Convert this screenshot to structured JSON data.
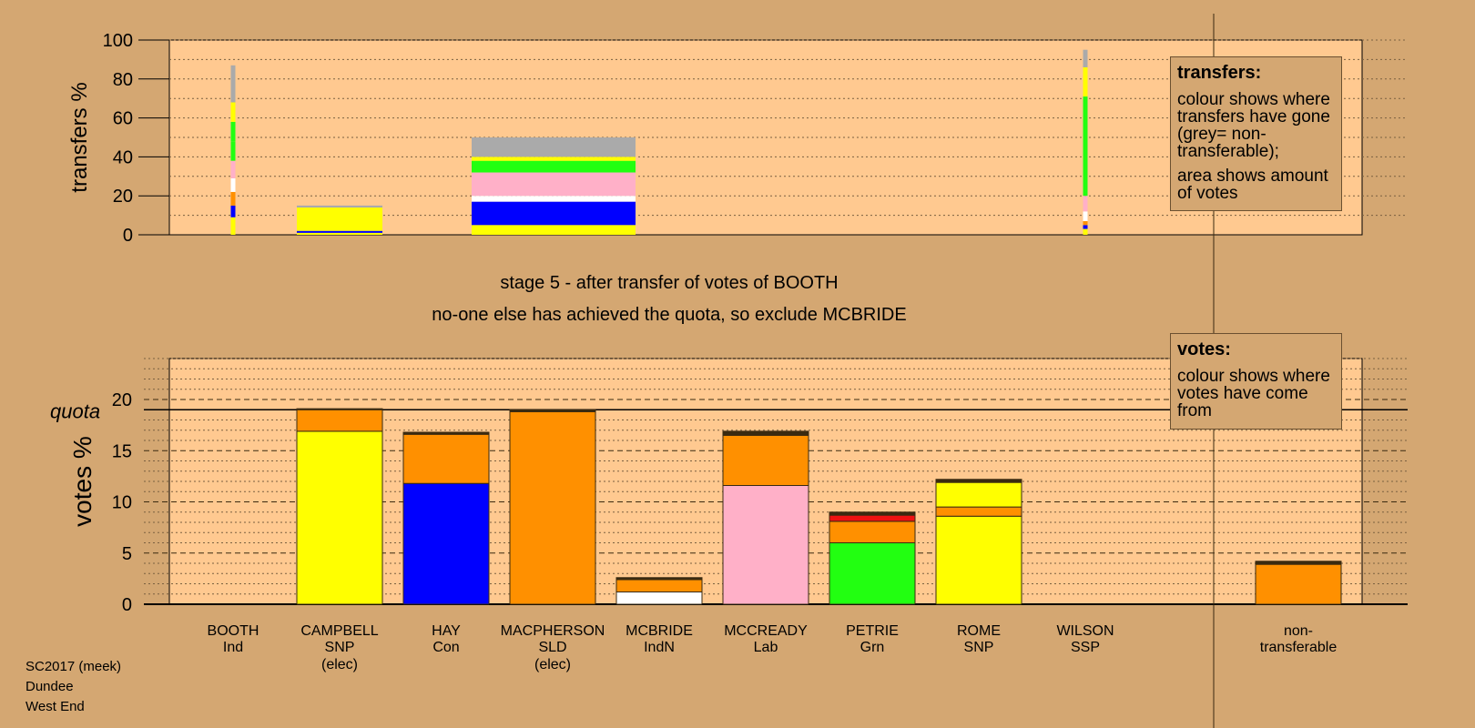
{
  "stage": {
    "title": "stage 5 - after transfer of votes of BOOTH",
    "subtitle": "no-one else has achieved the quota, so exclude MCBRIDE"
  },
  "legends": {
    "transfers_title": "transfers:",
    "transfers_p1": "colour shows where transfers have gone (grey= non-transferable);",
    "transfers_p2": "area shows amount of votes",
    "votes_title": "votes:",
    "votes_p1": "colour shows where votes have come from"
  },
  "footer": {
    "line1": "SC2017 (meek)",
    "line2": "Dundee",
    "line3": "West End"
  },
  "colors": {
    "background": "#d4a772",
    "plot_area": "#ffc990",
    "Ind": "#ffffff",
    "SNP": "#ffff00",
    "Con": "#0000ff",
    "SLD": "#ff9000",
    "IndN": "#ffffff",
    "Lab": "#ffb0c8",
    "Grn": "#22ff11",
    "SSP": "#ee1111",
    "nontransferable": "#aaaaaa"
  },
  "chart_data": [
    {
      "type": "bar",
      "stacked": true,
      "ylabel": "transfers %",
      "ylim": [
        0,
        100
      ],
      "yticks": [
        0,
        20,
        40,
        60,
        80,
        100
      ],
      "categories": [
        "BOOTH",
        "CAMPBELL",
        "HAY",
        "MACPHERSON",
        "MCBRIDE",
        "MCCREADY",
        "PETRIE",
        "ROME",
        "WILSON"
      ],
      "note": "bar width shows amount of votes",
      "bars": [
        {
          "candidate": "BOOTH",
          "width_votes_percent": 0.0,
          "segments": [
            {
              "to": "SNP",
              "value": 9
            },
            {
              "to": "Con",
              "value": 6
            },
            {
              "to": "SLD",
              "value": 7
            },
            {
              "to": "IndN",
              "value": 7
            },
            {
              "to": "Lab",
              "value": 9
            },
            {
              "to": "Grn",
              "value": 10
            },
            {
              "to": "Grn",
              "value": 10
            },
            {
              "to": "SNP",
              "value": 10
            },
            {
              "to": "non-transferable",
              "value": 19
            }
          ]
        },
        {
          "candidate": "CAMPBELL",
          "width_votes_percent": 2.0,
          "segments": [
            {
              "to": "SNP",
              "value": 1
            },
            {
              "to": "Con",
              "value": 1
            },
            {
              "to": "SNP",
              "value": 12
            },
            {
              "to": "non-transferable",
              "value": 1
            }
          ]
        },
        {
          "candidate": "MACPHERSON",
          "width_votes_percent": 3.8,
          "segments": [
            {
              "to": "SNP",
              "value": 5
            },
            {
              "to": "Con",
              "value": 12
            },
            {
              "to": "IndN",
              "value": 3
            },
            {
              "to": "Lab",
              "value": 12
            },
            {
              "to": "Grn",
              "value": 6
            },
            {
              "to": "SNP",
              "value": 2
            },
            {
              "to": "non-transferable",
              "value": 10
            }
          ]
        },
        {
          "candidate": "WILSON",
          "width_votes_percent": 0.0,
          "segments": [
            {
              "to": "SNP",
              "value": 3
            },
            {
              "to": "Con",
              "value": 2
            },
            {
              "to": "SLD",
              "value": 2
            },
            {
              "to": "IndN",
              "value": 5
            },
            {
              "to": "Lab",
              "value": 8
            },
            {
              "to": "Grn",
              "value": 51
            },
            {
              "to": "SNP",
              "value": 15
            },
            {
              "to": "non-transferable",
              "value": 9
            }
          ]
        }
      ]
    },
    {
      "type": "bar",
      "stacked": true,
      "ylabel": "votes %",
      "ylim": [
        0,
        24
      ],
      "yticks": [
        0,
        5,
        10,
        15,
        20
      ],
      "quota": 19.0,
      "quota_label": "quota",
      "categories": [
        {
          "name": "BOOTH",
          "party": "Ind",
          "status": ""
        },
        {
          "name": "CAMPBELL",
          "party": "SNP",
          "status": "(elec)"
        },
        {
          "name": "HAY",
          "party": "Con",
          "status": ""
        },
        {
          "name": "MACPHERSON",
          "party": "SLD",
          "status": "(elec)"
        },
        {
          "name": "MCBRIDE",
          "party": "IndN",
          "status": ""
        },
        {
          "name": "MCCREADY",
          "party": "Lab",
          "status": ""
        },
        {
          "name": "PETRIE",
          "party": "Grn",
          "status": ""
        },
        {
          "name": "ROME",
          "party": "SNP",
          "status": ""
        },
        {
          "name": "WILSON",
          "party": "SSP",
          "status": ""
        },
        {
          "name": "non-",
          "party": "transferable",
          "status": ""
        }
      ],
      "bars": [
        {
          "candidate": "BOOTH",
          "segments": []
        },
        {
          "candidate": "CAMPBELL",
          "segments": [
            {
              "from": "SNP",
              "value": 16.9
            },
            {
              "from": "SLD",
              "value": 2.1
            },
            {
              "from": "other",
              "value": 0.1
            }
          ]
        },
        {
          "candidate": "HAY",
          "segments": [
            {
              "from": "Con",
              "value": 11.8
            },
            {
              "from": "SLD",
              "value": 4.8
            },
            {
              "from": "other",
              "value": 0.2
            }
          ]
        },
        {
          "candidate": "MACPHERSON",
          "segments": [
            {
              "from": "SLD",
              "value": 18.8
            },
            {
              "from": "other",
              "value": 0.2
            }
          ]
        },
        {
          "candidate": "MCBRIDE",
          "segments": [
            {
              "from": "IndN",
              "value": 1.2
            },
            {
              "from": "SLD",
              "value": 1.2
            },
            {
              "from": "other",
              "value": 0.2
            }
          ]
        },
        {
          "candidate": "MCCREADY",
          "segments": [
            {
              "from": "Lab",
              "value": 11.6
            },
            {
              "from": "SLD",
              "value": 4.9
            },
            {
              "from": "other",
              "value": 0.4
            }
          ]
        },
        {
          "candidate": "PETRIE",
          "segments": [
            {
              "from": "Grn",
              "value": 6.0
            },
            {
              "from": "SLD",
              "value": 2.1
            },
            {
              "from": "SSP",
              "value": 0.6
            },
            {
              "from": "other",
              "value": 0.3
            }
          ]
        },
        {
          "candidate": "ROME",
          "segments": [
            {
              "from": "SNP",
              "value": 8.6
            },
            {
              "from": "SLD",
              "value": 0.9
            },
            {
              "from": "SNP2",
              "value": 2.4
            },
            {
              "from": "other",
              "value": 0.3
            }
          ]
        },
        {
          "candidate": "WILSON",
          "segments": []
        },
        {
          "candidate": "non-transferable",
          "segments": [
            {
              "from": "SLD",
              "value": 3.9
            },
            {
              "from": "other",
              "value": 0.3
            }
          ]
        }
      ]
    }
  ]
}
